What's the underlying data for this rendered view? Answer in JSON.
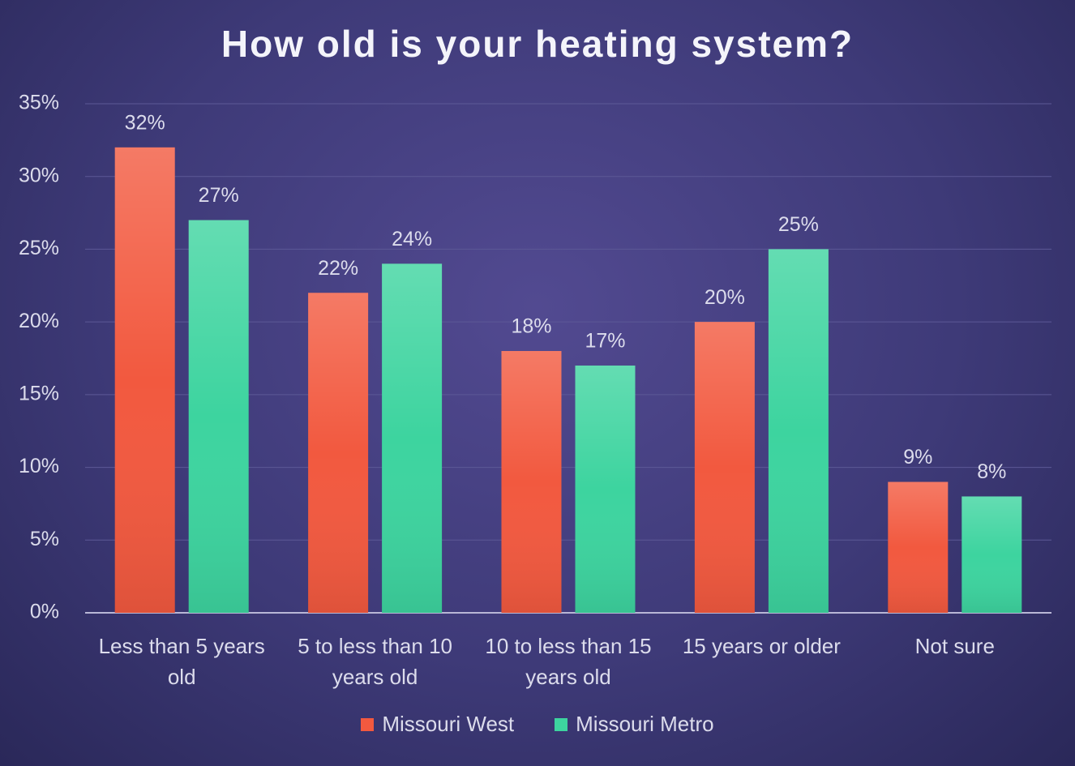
{
  "chart_data": {
    "type": "bar",
    "title": "How old is your heating system?",
    "categories": [
      "Less than 5 years old",
      "5 to less than 10 years old",
      "10 to less than 15 years old",
      "15 years or older",
      "Not sure"
    ],
    "series": [
      {
        "name": "Missouri West",
        "color": "#f2593f",
        "values": [
          32,
          22,
          18,
          20,
          9
        ],
        "value_labels": [
          "32%",
          "22%",
          "18%",
          "20%",
          "9%"
        ]
      },
      {
        "name": "Missouri Metro",
        "color": "#3dd49f",
        "values": [
          27,
          24,
          17,
          25,
          8
        ],
        "value_labels": [
          "27%",
          "24%",
          "17%",
          "25%",
          "8%"
        ]
      }
    ],
    "ylim": [
      0,
      35
    ],
    "yticks": [
      {
        "value": 0,
        "label": "0%"
      },
      {
        "value": 5,
        "label": "5%"
      },
      {
        "value": 10,
        "label": "10%"
      },
      {
        "value": 15,
        "label": "15%"
      },
      {
        "value": 20,
        "label": "20%"
      },
      {
        "value": 25,
        "label": "25%"
      },
      {
        "value": 30,
        "label": "30%"
      },
      {
        "value": 35,
        "label": "35%"
      }
    ],
    "grid": true,
    "legend": "bottom"
  }
}
